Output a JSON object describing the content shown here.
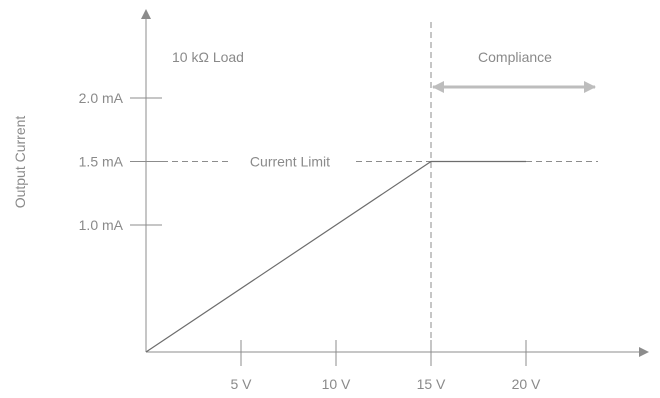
{
  "chart_data": {
    "type": "line",
    "title": "",
    "xlabel": "",
    "ylabel": "Output Current",
    "xlim": [
      0,
      26
    ],
    "ylim": [
      0,
      2.6
    ],
    "x_ticks": [
      {
        "value": 5,
        "label": "5 V"
      },
      {
        "value": 10,
        "label": "10 V"
      },
      {
        "value": 15,
        "label": "15 V"
      },
      {
        "value": 20,
        "label": "20 V"
      }
    ],
    "y_ticks": [
      {
        "value": 1.0,
        "label": "1.0 mA"
      },
      {
        "value": 1.5,
        "label": "1.5 mA"
      },
      {
        "value": 2.0,
        "label": "2.0 mA"
      }
    ],
    "series": [
      {
        "x": [
          0,
          15,
          20
        ],
        "y": [
          0,
          1.5,
          1.5
        ],
        "color": "#6d6d6d"
      }
    ],
    "current_limit": {
      "value": 1.5,
      "label": "Current Limit"
    },
    "compliance": {
      "x": 15,
      "label": "Compliance"
    },
    "annotation": "10 kΩ Load",
    "grid": false,
    "colors": {
      "axis": "#8c8c8c",
      "text": "#8a8a8a",
      "series": "#6d6d6d",
      "arrow": "#bdbdbd"
    }
  }
}
